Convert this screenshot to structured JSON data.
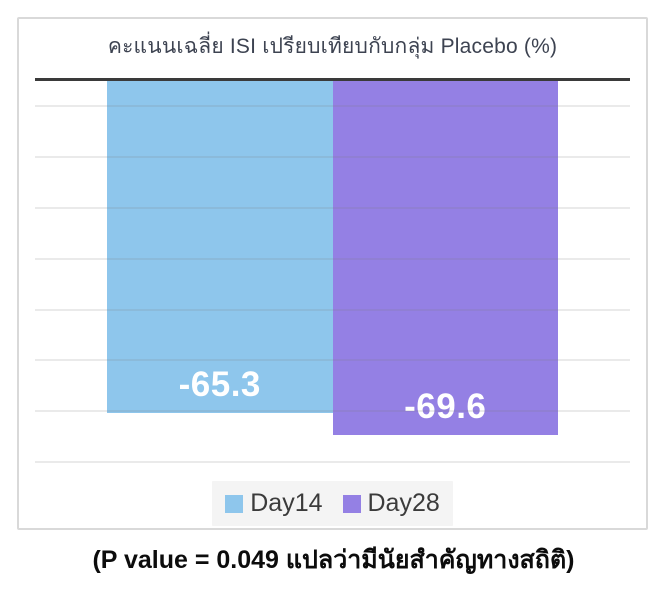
{
  "chart_data": {
    "type": "bar",
    "title": "คะแนนเฉลี่ย ISI เปรียบเทียบกับกลุ่ม Placebo (%)",
    "categories": [
      "Day14",
      "Day28"
    ],
    "series": [
      {
        "name": "Day14",
        "value": -65.3,
        "label": "-65.3",
        "color": "#8ec6ec"
      },
      {
        "name": "Day28",
        "value": -69.6,
        "label": "-69.6",
        "color": "#9480e4"
      }
    ],
    "xlabel": "",
    "ylabel": "",
    "ylim": [
      0,
      -75
    ],
    "gridline_values": [
      -5,
      -15,
      -25,
      -35,
      -45,
      -55,
      -65,
      -75
    ],
    "grid": true,
    "axis_tick_labels_visible": false,
    "value_label_color": "#ffffff",
    "legend_position": "bottom",
    "zero_axis_color": "#3a3a3a",
    "note": "(P value = 0.049 แปลว่ามีนัยสำคัญทางสถิติ)"
  }
}
